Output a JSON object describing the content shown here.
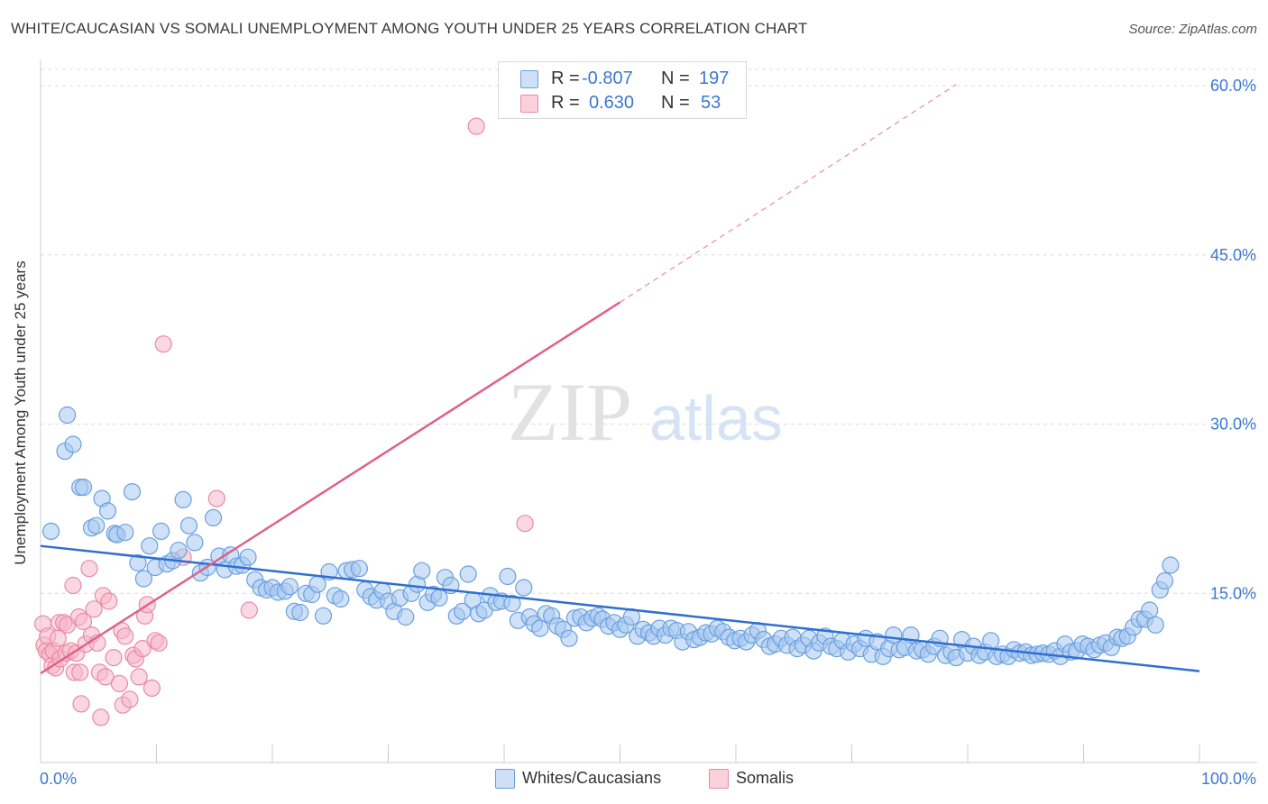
{
  "header": {
    "title": "WHITE/CAUCASIAN VS SOMALI UNEMPLOYMENT AMONG YOUTH UNDER 25 YEARS CORRELATION CHART",
    "source": "Source: ZipAtlas.com"
  },
  "watermark": {
    "zip": "ZIP",
    "atlas": "atlas"
  },
  "legend": {
    "rows": [
      {
        "r_label": "R =",
        "r_value": "-0.807",
        "n_label": "N =",
        "n_value": "197",
        "color": "#a7c8f0",
        "border": "#6a9fe0"
      },
      {
        "r_label": "R =",
        "r_value": "0.630",
        "n_label": "N =",
        "n_value": "53",
        "color": "#f5b6ca",
        "border": "#e98aa8"
      }
    ]
  },
  "bottom_legend": [
    {
      "label": "Whites/Caucasians",
      "color": "#a7c8f0",
      "border": "#6a9fe0"
    },
    {
      "label": "Somalis",
      "color": "#f5b6ca",
      "border": "#e98aa8"
    }
  ],
  "chart_data": {
    "type": "scatter",
    "title": "WHITE/CAUCASIAN VS SOMALI UNEMPLOYMENT AMONG YOUTH UNDER 25 YEARS CORRELATION CHART",
    "xlabel": "",
    "ylabel": "Unemployment Among Youth under 25 years",
    "xlim": [
      0,
      100
    ],
    "ylim": [
      0,
      62
    ],
    "x_tick_labels": [
      {
        "value": 0,
        "label": "0.0%"
      },
      {
        "value": 100,
        "label": "100.0%"
      }
    ],
    "y_tick_labels": [
      {
        "value": 15,
        "label": "15.0%"
      },
      {
        "value": 30,
        "label": "30.0%"
      },
      {
        "value": 45,
        "label": "45.0%"
      },
      {
        "value": 60,
        "label": "60.0%"
      }
    ],
    "x_minor_ticks": [
      0,
      10,
      20,
      30,
      40,
      50,
      60,
      70,
      80,
      90,
      100
    ],
    "grid": true,
    "series": [
      {
        "name": "Whites/Caucasians",
        "color": "#6a9fe0",
        "fill": "#a7c8f0",
        "r": -0.807,
        "n": 197,
        "trend": {
          "x0": 0,
          "y0": 19.2,
          "x1": 100,
          "y1": 8.1
        },
        "points": [
          [
            0.9,
            20.5
          ],
          [
            2.1,
            27.6
          ],
          [
            2.3,
            30.8
          ],
          [
            2.8,
            28.2
          ],
          [
            3.4,
            24.4
          ],
          [
            3.7,
            24.4
          ],
          [
            4.4,
            20.8
          ],
          [
            4.8,
            21.0
          ],
          [
            5.3,
            23.4
          ],
          [
            5.8,
            22.3
          ],
          [
            6.4,
            20.3
          ],
          [
            6.6,
            20.2
          ],
          [
            7.3,
            20.4
          ],
          [
            7.9,
            24.0
          ],
          [
            8.4,
            17.7
          ],
          [
            8.9,
            16.3
          ],
          [
            9.4,
            19.2
          ],
          [
            9.9,
            17.3
          ],
          [
            10.4,
            20.5
          ],
          [
            10.9,
            17.6
          ],
          [
            11.4,
            17.9
          ],
          [
            11.9,
            18.8
          ],
          [
            12.3,
            23.3
          ],
          [
            12.8,
            21.0
          ],
          [
            13.3,
            19.5
          ],
          [
            13.8,
            16.8
          ],
          [
            14.4,
            17.3
          ],
          [
            14.9,
            21.7
          ],
          [
            15.4,
            18.3
          ],
          [
            15.9,
            17.1
          ],
          [
            16.4,
            18.4
          ],
          [
            16.9,
            17.4
          ],
          [
            17.4,
            17.5
          ],
          [
            17.9,
            18.2
          ],
          [
            18.5,
            16.2
          ],
          [
            19.0,
            15.5
          ],
          [
            19.5,
            15.3
          ],
          [
            20.0,
            15.5
          ],
          [
            20.5,
            15.1
          ],
          [
            21.1,
            15.2
          ],
          [
            21.5,
            15.6
          ],
          [
            21.9,
            13.4
          ],
          [
            22.4,
            13.3
          ],
          [
            22.9,
            15.0
          ],
          [
            23.4,
            14.9
          ],
          [
            23.9,
            15.8
          ],
          [
            24.4,
            13.0
          ],
          [
            24.9,
            16.9
          ],
          [
            25.4,
            14.8
          ],
          [
            25.9,
            14.5
          ],
          [
            26.4,
            17.0
          ],
          [
            26.9,
            17.1
          ],
          [
            27.5,
            17.2
          ],
          [
            28.0,
            15.3
          ],
          [
            28.5,
            14.7
          ],
          [
            29.0,
            14.4
          ],
          [
            29.5,
            15.2
          ],
          [
            30.0,
            14.3
          ],
          [
            30.5,
            13.4
          ],
          [
            31.0,
            14.6
          ],
          [
            31.5,
            12.9
          ],
          [
            32.0,
            15.0
          ],
          [
            32.5,
            15.8
          ],
          [
            32.9,
            17.0
          ],
          [
            33.4,
            14.2
          ],
          [
            33.9,
            14.9
          ],
          [
            34.4,
            14.6
          ],
          [
            34.9,
            16.4
          ],
          [
            35.4,
            15.7
          ],
          [
            35.9,
            13.0
          ],
          [
            36.4,
            13.4
          ],
          [
            36.9,
            16.7
          ],
          [
            37.3,
            14.4
          ],
          [
            37.8,
            13.2
          ],
          [
            38.3,
            13.5
          ],
          [
            38.8,
            14.8
          ],
          [
            39.3,
            14.2
          ],
          [
            39.8,
            14.3
          ],
          [
            40.3,
            16.5
          ],
          [
            40.7,
            14.1
          ],
          [
            41.2,
            12.6
          ],
          [
            41.7,
            15.5
          ],
          [
            42.2,
            12.9
          ],
          [
            42.6,
            12.3
          ],
          [
            43.1,
            11.9
          ],
          [
            43.6,
            13.2
          ],
          [
            44.1,
            13.0
          ],
          [
            44.6,
            12.1
          ],
          [
            45.1,
            11.8
          ],
          [
            45.6,
            11.0
          ],
          [
            46.1,
            12.8
          ],
          [
            46.6,
            12.9
          ],
          [
            47.1,
            12.4
          ],
          [
            47.6,
            12.8
          ],
          [
            48.1,
            13.0
          ],
          [
            48.5,
            12.7
          ],
          [
            49.0,
            12.1
          ],
          [
            49.5,
            12.4
          ],
          [
            50.0,
            11.8
          ],
          [
            50.5,
            12.2
          ],
          [
            51.0,
            12.9
          ],
          [
            51.5,
            11.2
          ],
          [
            52.0,
            11.8
          ],
          [
            52.5,
            11.5
          ],
          [
            52.9,
            11.2
          ],
          [
            53.4,
            11.9
          ],
          [
            53.9,
            11.3
          ],
          [
            54.4,
            11.9
          ],
          [
            54.9,
            11.7
          ],
          [
            55.4,
            10.7
          ],
          [
            55.9,
            11.6
          ],
          [
            56.4,
            10.9
          ],
          [
            56.9,
            11.1
          ],
          [
            57.4,
            11.5
          ],
          [
            57.9,
            11.4
          ],
          [
            58.4,
            11.9
          ],
          [
            58.9,
            11.6
          ],
          [
            59.4,
            11.1
          ],
          [
            59.9,
            10.8
          ],
          [
            60.4,
            11.0
          ],
          [
            60.9,
            10.7
          ],
          [
            61.4,
            11.3
          ],
          [
            61.9,
            11.7
          ],
          [
            62.4,
            10.9
          ],
          [
            62.9,
            10.3
          ],
          [
            63.4,
            10.5
          ],
          [
            63.9,
            11.0
          ],
          [
            64.4,
            10.4
          ],
          [
            64.9,
            11.1
          ],
          [
            65.3,
            10.1
          ],
          [
            65.8,
            10.4
          ],
          [
            66.3,
            11.0
          ],
          [
            66.7,
            9.9
          ],
          [
            67.2,
            10.6
          ],
          [
            67.7,
            11.2
          ],
          [
            68.2,
            10.3
          ],
          [
            68.7,
            10.1
          ],
          [
            69.2,
            10.8
          ],
          [
            69.7,
            9.8
          ],
          [
            70.2,
            10.5
          ],
          [
            70.7,
            10.1
          ],
          [
            71.2,
            11.0
          ],
          [
            71.7,
            9.6
          ],
          [
            72.2,
            10.7
          ],
          [
            72.7,
            9.4
          ],
          [
            73.2,
            10.1
          ],
          [
            73.6,
            11.3
          ],
          [
            74.1,
            10.0
          ],
          [
            74.6,
            10.2
          ],
          [
            75.1,
            11.3
          ],
          [
            75.6,
            9.9
          ],
          [
            76.1,
            10.0
          ],
          [
            76.6,
            9.6
          ],
          [
            77.1,
            10.3
          ],
          [
            77.6,
            11.0
          ],
          [
            78.1,
            9.5
          ],
          [
            78.6,
            9.8
          ],
          [
            79.0,
            9.3
          ],
          [
            79.5,
            10.9
          ],
          [
            80.0,
            9.7
          ],
          [
            80.5,
            10.3
          ],
          [
            81.0,
            9.5
          ],
          [
            81.5,
            9.8
          ],
          [
            82.0,
            10.8
          ],
          [
            82.5,
            9.4
          ],
          [
            83.0,
            9.6
          ],
          [
            83.5,
            9.4
          ],
          [
            84.0,
            10.0
          ],
          [
            84.5,
            9.7
          ],
          [
            85.0,
            9.8
          ],
          [
            85.5,
            9.5
          ],
          [
            86.0,
            9.6
          ],
          [
            86.5,
            9.7
          ],
          [
            87.0,
            9.6
          ],
          [
            87.5,
            9.9
          ],
          [
            88.0,
            9.4
          ],
          [
            88.4,
            10.5
          ],
          [
            88.9,
            9.8
          ],
          [
            89.4,
            9.9
          ],
          [
            89.9,
            10.5
          ],
          [
            90.4,
            10.3
          ],
          [
            90.9,
            10.0
          ],
          [
            91.4,
            10.4
          ],
          [
            91.9,
            10.6
          ],
          [
            92.4,
            10.2
          ],
          [
            92.9,
            11.1
          ],
          [
            93.3,
            11.0
          ],
          [
            93.8,
            11.2
          ],
          [
            94.3,
            12.0
          ],
          [
            94.8,
            12.7
          ],
          [
            95.3,
            12.7
          ],
          [
            95.7,
            13.5
          ],
          [
            96.2,
            12.2
          ],
          [
            96.6,
            15.3
          ],
          [
            97.0,
            16.1
          ],
          [
            97.5,
            17.5
          ]
        ]
      },
      {
        "name": "Somalis",
        "color": "#e98aa8",
        "fill": "#f5b6ca",
        "r": 0.63,
        "n": 53,
        "trend": {
          "x0": 0,
          "y0": 7.9,
          "x1": 50,
          "y1": 40.8
        },
        "trend_extension": {
          "x0": 50,
          "y0": 40.8,
          "x1": 79,
          "y1": 60.1
        },
        "points": [
          [
            0.2,
            12.3
          ],
          [
            0.3,
            10.4
          ],
          [
            0.5,
            9.9
          ],
          [
            0.6,
            11.2
          ],
          [
            0.8,
            9.6
          ],
          [
            1.0,
            8.6
          ],
          [
            1.1,
            9.9
          ],
          [
            1.3,
            8.4
          ],
          [
            1.5,
            11.0
          ],
          [
            1.6,
            12.4
          ],
          [
            1.7,
            9.2
          ],
          [
            2.0,
            12.4
          ],
          [
            2.2,
            9.7
          ],
          [
            2.3,
            12.2
          ],
          [
            2.6,
            9.9
          ],
          [
            2.8,
            15.7
          ],
          [
            2.9,
            8.0
          ],
          [
            3.1,
            9.7
          ],
          [
            3.3,
            12.9
          ],
          [
            3.4,
            8.0
          ],
          [
            3.5,
            5.2
          ],
          [
            3.7,
            12.5
          ],
          [
            3.9,
            10.5
          ],
          [
            4.2,
            17.2
          ],
          [
            4.4,
            11.3
          ],
          [
            4.6,
            13.6
          ],
          [
            4.9,
            10.6
          ],
          [
            5.1,
            8.0
          ],
          [
            5.2,
            4.0
          ],
          [
            5.4,
            14.8
          ],
          [
            5.6,
            7.6
          ],
          [
            5.9,
            14.3
          ],
          [
            6.3,
            9.3
          ],
          [
            6.8,
            7.0
          ],
          [
            7.0,
            11.7
          ],
          [
            7.1,
            5.1
          ],
          [
            7.3,
            11.2
          ],
          [
            7.7,
            5.6
          ],
          [
            8.0,
            9.5
          ],
          [
            8.2,
            9.2
          ],
          [
            8.5,
            7.6
          ],
          [
            8.8,
            10.1
          ],
          [
            9.0,
            13.0
          ],
          [
            9.2,
            14.0
          ],
          [
            9.6,
            6.6
          ],
          [
            9.9,
            10.8
          ],
          [
            10.2,
            10.6
          ],
          [
            10.6,
            37.1
          ],
          [
            12.3,
            18.2
          ],
          [
            15.2,
            23.4
          ],
          [
            18.0,
            13.5
          ],
          [
            37.6,
            56.4
          ],
          [
            41.8,
            21.2
          ]
        ]
      }
    ]
  }
}
